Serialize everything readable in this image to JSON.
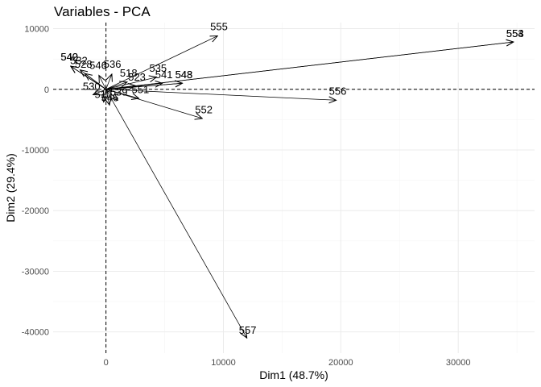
{
  "chart_data": {
    "type": "scatter",
    "title": "Variables - PCA",
    "xlabel": "Dim1 (48.7%)",
    "ylabel": "Dim2 (29.4%)",
    "xlim": [
      -4500,
      36500
    ],
    "ylim": [
      -43500,
      11000
    ],
    "x_ticks": [
      0,
      10000,
      20000,
      30000
    ],
    "x_tick_labels": [
      "0",
      "10000",
      "20000",
      "30000"
    ],
    "y_ticks": [
      10000,
      0,
      -10000,
      -20000,
      -30000,
      -40000
    ],
    "y_tick_labels": [
      "10000",
      "0",
      "-10000",
      "-20000",
      "-30000",
      "-40000"
    ],
    "grid": true,
    "reference_lines": {
      "x": 0,
      "y": 0
    },
    "arrows": [
      {
        "label": "555",
        "x": 9500,
        "y": 8800
      },
      {
        "label": "553",
        "x": 34700,
        "y": 7800
      },
      {
        "label": "554",
        "x": 34700,
        "y": 7800
      },
      {
        "label": "556",
        "x": 19600,
        "y": -1800
      },
      {
        "label": "552",
        "x": 8200,
        "y": -4800
      },
      {
        "label": "557",
        "x": 12000,
        "y": -41000
      },
      {
        "label": "535",
        "x": 4300,
        "y": 2000
      },
      {
        "label": "541",
        "x": 4800,
        "y": 1000
      },
      {
        "label": "543",
        "x": 6500,
        "y": 1000
      },
      {
        "label": "548",
        "x": 6500,
        "y": 1000
      },
      {
        "label": "536",
        "x": 500,
        "y": 2500
      },
      {
        "label": "540",
        "x": -3000,
        "y": 3800
      },
      {
        "label": "542",
        "x": -3000,
        "y": 3800
      },
      {
        "label": "532",
        "x": -2200,
        "y": 3200
      },
      {
        "label": "528",
        "x": -1800,
        "y": 2600
      },
      {
        "label": "546",
        "x": -600,
        "y": 2300
      },
      {
        "label": "518",
        "x": 1800,
        "y": 1200
      },
      {
        "label": "523",
        "x": 2500,
        "y": 600
      },
      {
        "label": "551",
        "x": 2800,
        "y": -1500
      },
      {
        "label": "539",
        "x": 1000,
        "y": -1800
      },
      {
        "label": "530",
        "x": -1100,
        "y": -900
      },
      {
        "label": "510",
        "x": -200,
        "y": -2100
      },
      {
        "label": "546",
        "x": 300,
        "y": -2600
      }
    ]
  }
}
